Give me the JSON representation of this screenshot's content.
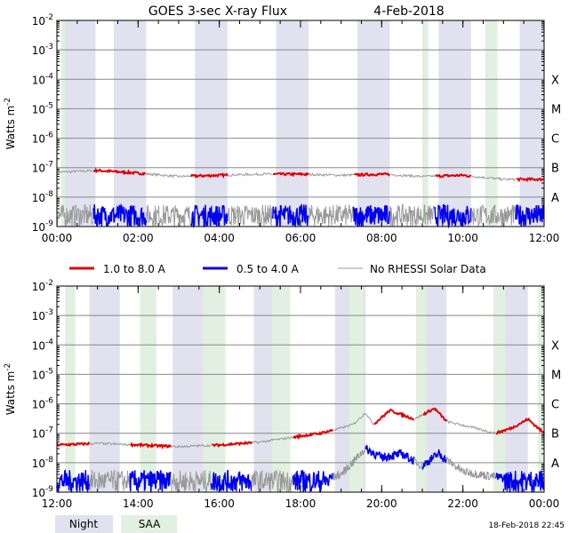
{
  "title": "GOES 3-sec X-ray Flux",
  "date": "4-Feb-2018",
  "timestamp": "18-Feb-2018 22:45",
  "legend": {
    "series": [
      {
        "label": "1.0 to 8.0 A",
        "color": "#e00000"
      },
      {
        "label": "0.5 to 4.0 A",
        "color": "#0000ee"
      },
      {
        "label": "No RHESSI Solar Data",
        "color": "#999999"
      }
    ],
    "night": {
      "label": "Night",
      "color": "#e1e1f0"
    },
    "saa": {
      "label": "SAA",
      "color": "#e1f0e1"
    }
  },
  "chart_data": [
    {
      "type": "line",
      "panel": "top",
      "ylabel": "Watts m",
      "ylabel_sup": "-2",
      "yscale": "log",
      "ylim": [
        1e-09,
        0.01
      ],
      "ytick_labels": [
        "10-9",
        "10-8",
        "10-7",
        "10-6",
        "10-5",
        "10-4",
        "10-3",
        "10-2"
      ],
      "class_labels": [
        "A",
        "B",
        "C",
        "M",
        "X"
      ],
      "xlim_hours": [
        0,
        12
      ],
      "xtick_labels": [
        "00:00",
        "02:00",
        "04:00",
        "06:00",
        "08:00",
        "10:00",
        "12:00"
      ],
      "night_bands_hours": [
        [
          0.2,
          0.95
        ],
        [
          1.4,
          2.2
        ],
        [
          3.4,
          4.2
        ],
        [
          5.4,
          6.2
        ],
        [
          7.4,
          8.2
        ],
        [
          9.4,
          10.2
        ],
        [
          11.4,
          12.0
        ]
      ],
      "saa_bands_hours": [
        [
          0.1,
          0.2
        ],
        [
          9.0,
          9.15
        ],
        [
          10.55,
          10.85
        ]
      ],
      "long_channel": {
        "name": "1.0 to 8.0 A",
        "points": [
          [
            0,
            7e-08
          ],
          [
            1,
            8e-08
          ],
          [
            2,
            6.5e-08
          ],
          [
            3,
            5e-08
          ],
          [
            4,
            5.5e-08
          ],
          [
            5,
            6e-08
          ],
          [
            6,
            6e-08
          ],
          [
            7,
            5.5e-08
          ],
          [
            8,
            6e-08
          ],
          [
            9,
            5e-08
          ],
          [
            10,
            5.5e-08
          ],
          [
            11,
            4e-08
          ],
          [
            12,
            4e-08
          ]
        ],
        "no_data_hours": [
          [
            0,
            0.9
          ],
          [
            2.2,
            3.3
          ],
          [
            4.2,
            5.3
          ],
          [
            6.2,
            7.3
          ],
          [
            8.2,
            9.3
          ],
          [
            10.2,
            11.3
          ]
        ]
      },
      "short_channel": {
        "name": "0.5 to 4.0 A",
        "level": 1.5e-09,
        "no_data_hours": [
          [
            0,
            0.9
          ],
          [
            2.2,
            3.3
          ],
          [
            4.2,
            5.3
          ],
          [
            6.2,
            7.3
          ],
          [
            8.2,
            9.3
          ],
          [
            10.2,
            11.3
          ]
        ]
      }
    },
    {
      "type": "line",
      "panel": "bottom",
      "ylabel": "Watts m",
      "ylabel_sup": "-2",
      "yscale": "log",
      "ylim": [
        1e-09,
        0.01
      ],
      "ytick_labels": [
        "10-9",
        "10-8",
        "10-7",
        "10-6",
        "10-5",
        "10-4",
        "10-3",
        "10-2"
      ],
      "class_labels": [
        "A",
        "B",
        "C",
        "M",
        "X"
      ],
      "xlim_hours": [
        12,
        24
      ],
      "xtick_labels": [
        "12:00",
        "14:00",
        "16:00",
        "18:00",
        "20:00",
        "22:00",
        "00:00"
      ],
      "night_bands_hours": [
        [
          12.8,
          13.55
        ],
        [
          14.85,
          15.6
        ],
        [
          16.85,
          17.6
        ],
        [
          18.85,
          19.6
        ],
        [
          20.85,
          21.6
        ],
        [
          22.85,
          23.6
        ]
      ],
      "saa_bands_hours": [
        [
          12.2,
          12.45
        ],
        [
          14.05,
          14.45
        ],
        [
          15.6,
          16.15
        ],
        [
          17.3,
          17.75
        ],
        [
          19.2,
          19.55
        ],
        [
          20.85,
          21.1
        ],
        [
          22.75,
          23.05
        ],
        [
          23.85,
          24.0
        ]
      ],
      "long_channel": {
        "name": "1.0 to 8.0 A",
        "points": [
          [
            12,
            4e-08
          ],
          [
            13,
            4.5e-08
          ],
          [
            14,
            4e-08
          ],
          [
            15,
            3.5e-08
          ],
          [
            16,
            4e-08
          ],
          [
            17,
            5e-08
          ],
          [
            18,
            8e-08
          ],
          [
            18.5,
            1e-07
          ],
          [
            19,
            1.5e-07
          ],
          [
            19.3,
            2e-07
          ],
          [
            19.6,
            5e-07
          ],
          [
            19.8,
            2e-07
          ],
          [
            20.2,
            6e-07
          ],
          [
            20.8,
            3e-07
          ],
          [
            21.3,
            7e-07
          ],
          [
            21.6,
            2.5e-07
          ],
          [
            22.3,
            1.5e-07
          ],
          [
            22.8,
            1e-07
          ],
          [
            23.2,
            1.5e-07
          ],
          [
            23.6,
            3e-07
          ],
          [
            24,
            1e-07
          ]
        ],
        "no_data_hours": [
          [
            12.8,
            13.8
          ],
          [
            14.8,
            15.8
          ],
          [
            16.8,
            17.8
          ],
          [
            18.8,
            19.8
          ],
          [
            20.8,
            21.0
          ],
          [
            21.6,
            22.8
          ]
        ]
      },
      "short_channel": {
        "name": "0.5 to 4.0 A",
        "points": [
          [
            12,
            1.5e-09
          ],
          [
            18,
            1.5e-09
          ],
          [
            19,
            4e-09
          ],
          [
            19.6,
            3e-08
          ],
          [
            20,
            1.5e-08
          ],
          [
            20.5,
            2e-08
          ],
          [
            21,
            8e-09
          ],
          [
            21.4,
            2e-08
          ],
          [
            22,
            5e-09
          ],
          [
            23,
            3e-09
          ],
          [
            23.7,
            2e-09
          ],
          [
            24,
            1.5e-09
          ]
        ],
        "no_data_hours": [
          [
            12.8,
            13.8
          ],
          [
            14.8,
            15.8
          ],
          [
            16.8,
            17.8
          ],
          [
            18.8,
            19.6
          ],
          [
            20.8,
            21.0
          ],
          [
            21.6,
            22.8
          ]
        ]
      }
    }
  ]
}
